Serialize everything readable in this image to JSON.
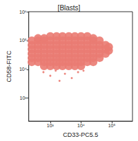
{
  "chart_data": {
    "type": "scatter",
    "title": "[Blasts]",
    "x_label": "CD33-PC5.5",
    "y_label": "CD58-FITC",
    "log": true,
    "color": "#ea7b72",
    "xlim": [
      200,
      470000
    ],
    "ylim": [
      160,
      1000000
    ],
    "xticks": [
      {
        "value": 1000,
        "label": "10³"
      },
      {
        "value": 10000,
        "label": "10⁴"
      },
      {
        "value": 100000,
        "label": "10⁵"
      }
    ],
    "yticks": [
      {
        "value": 1000,
        "label": "10³"
      },
      {
        "value": 10000,
        "label": "10⁴"
      },
      {
        "value": 100000,
        "label": "10⁵"
      },
      {
        "value": 1000000,
        "label": "10⁶"
      }
    ],
    "x": [
      250,
      250,
      250,
      250,
      250,
      250,
      400,
      400,
      400,
      400,
      400,
      400,
      400,
      630,
      630,
      630,
      630,
      630,
      630,
      630,
      630,
      1000,
      1000,
      1000,
      1000,
      1000,
      1000,
      1000,
      1000,
      1600,
      1600,
      1600,
      1600,
      1600,
      1600,
      1600,
      1600,
      2500,
      2500,
      2500,
      2500,
      2500,
      2500,
      2500,
      2500,
      4000,
      4000,
      4000,
      4000,
      4000,
      4000,
      4000,
      4000,
      6300,
      6300,
      6300,
      6300,
      6300,
      6300,
      6300,
      6300,
      10000,
      10000,
      10000,
      10000,
      10000,
      10000,
      10000,
      10000,
      16000,
      16000,
      16000,
      16000,
      16000,
      16000,
      16000,
      25000,
      25000,
      25000,
      25000,
      25000,
      25000,
      25000,
      40000,
      40000,
      40000,
      40000,
      40000,
      63000,
      63000,
      63000,
      80000,
      80000,
      600,
      1000,
      1500,
      2000,
      3000,
      5000,
      8000,
      12000
    ],
    "values": [
      18000,
      25000,
      35000,
      50000,
      70000,
      100000,
      18000,
      25000,
      35000,
      50000,
      70000,
      100000,
      120000,
      13000,
      18000,
      25000,
      35000,
      50000,
      70000,
      100000,
      120000,
      13000,
      18000,
      25000,
      35000,
      50000,
      70000,
      100000,
      140000,
      13000,
      18000,
      25000,
      35000,
      50000,
      70000,
      100000,
      140000,
      13000,
      18000,
      25000,
      35000,
      50000,
      70000,
      100000,
      140000,
      13000,
      18000,
      25000,
      35000,
      50000,
      70000,
      100000,
      140000,
      13000,
      18000,
      25000,
      35000,
      50000,
      70000,
      100000,
      140000,
      13000,
      18000,
      25000,
      35000,
      50000,
      70000,
      100000,
      140000,
      18000,
      25000,
      35000,
      50000,
      70000,
      100000,
      140000,
      18000,
      25000,
      35000,
      50000,
      70000,
      100000,
      120000,
      25000,
      35000,
      50000,
      70000,
      100000,
      35000,
      50000,
      70000,
      45000,
      60000,
      8000,
      6000,
      9000,
      4000,
      7000,
      5000,
      8000,
      9000
    ]
  }
}
